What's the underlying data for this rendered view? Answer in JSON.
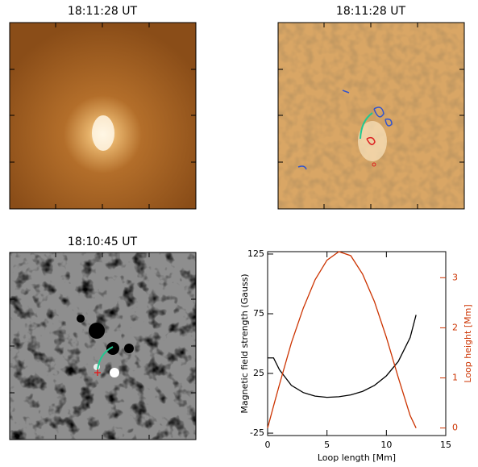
{
  "panels": [
    {
      "title": "18:11:28 UT"
    },
    {
      "title": "18:11:28 UT"
    },
    {
      "title": "18:10:45 UT"
    }
  ],
  "chart_data": {
    "type": "line",
    "xlabel": "Loop length [Mm]",
    "ylabel": "Magnetic field strength (Gauss)",
    "y2label": "Loop height [Mm]",
    "x": [
      0,
      0.5,
      1,
      2,
      3,
      4,
      5,
      6,
      7,
      8,
      9,
      10,
      11,
      12,
      12.5
    ],
    "series": [
      {
        "color": "#000000",
        "values": [
          38,
          38,
          28,
          15,
          9,
          6,
          5,
          5.5,
          7,
          10,
          15,
          23,
          35,
          55,
          74
        ]
      },
      {
        "color": "#cc3300",
        "axis": "y2",
        "values": [
          0,
          0.44,
          0.87,
          1.7,
          2.39,
          2.96,
          3.35,
          3.52,
          3.44,
          3.07,
          2.52,
          1.81,
          1.01,
          0.25,
          0
        ]
      }
    ],
    "xlim": [
      0,
      15
    ],
    "xticks": [
      0,
      5,
      10,
      15
    ],
    "ylim": [
      -27,
      127
    ],
    "yticks": [
      -25,
      25,
      75,
      125
    ],
    "y2lim": [
      -0.15,
      3.52
    ],
    "y2ticks": [
      0,
      1,
      2,
      3
    ],
    "y2color": "#cc3300"
  }
}
